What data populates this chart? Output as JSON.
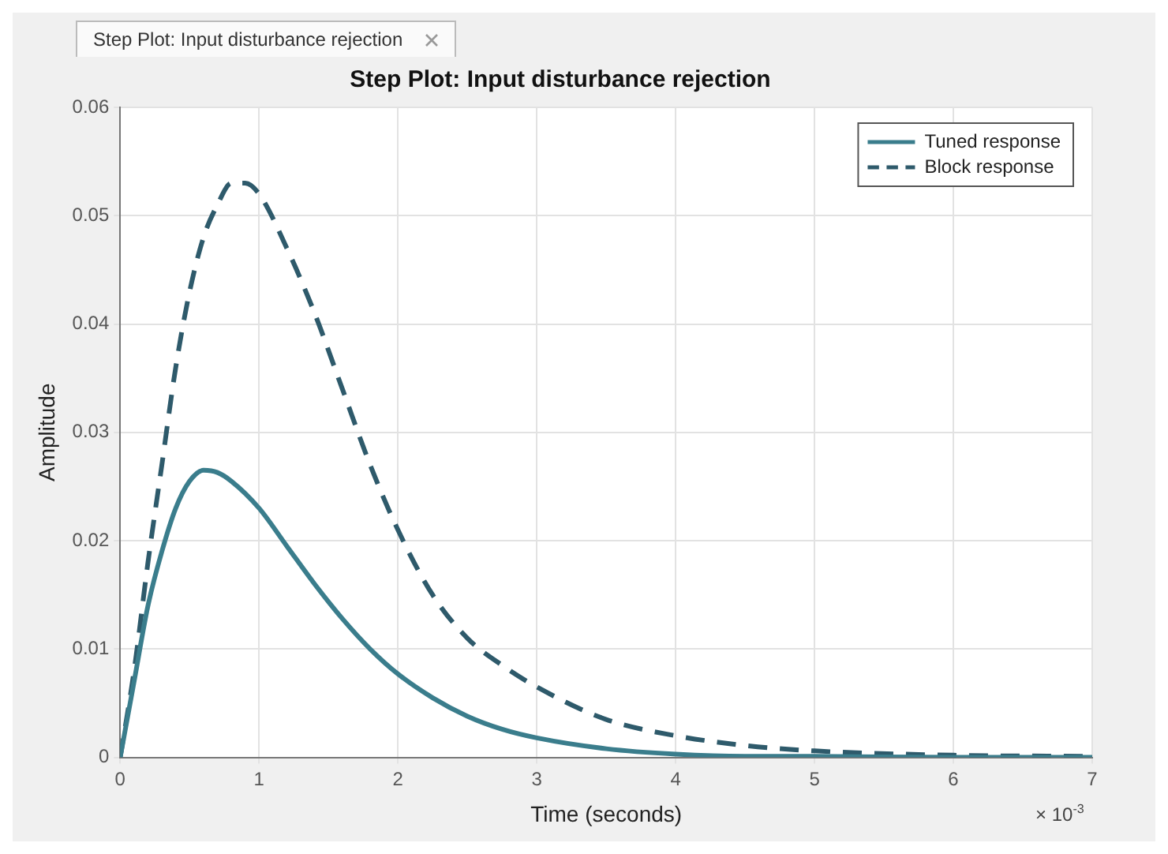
{
  "chart_data": {
    "type": "line",
    "title": "Step Plot: Input disturbance rejection",
    "xlabel": "Time (seconds)",
    "ylabel": "Amplitude",
    "annotations": [
      "Step Plot: Input disturbance rejection",
      "× 10$^{-3}$"
    ],
    "xlim": [
      0,
      7
    ],
    "xticks": [
      0,
      1,
      2,
      3,
      4,
      5,
      6,
      7
    ],
    "ylim": [
      0,
      0.06
    ],
    "yticks": [
      0,
      0.01,
      0.02,
      0.03,
      0.04,
      0.05,
      0.06
    ],
    "grid": true,
    "legend": "top right",
    "marker": "none",
    "series": [
      {
        "name": "Tuned response",
        "color": "#3a7d8c",
        "line_style": "solid",
        "x": [
          0,
          0.1,
          0.2,
          0.3,
          0.4,
          0.5,
          0.6,
          0.7,
          0.8,
          1.0,
          1.2,
          1.4,
          1.6,
          1.8,
          2.0,
          2.25,
          2.5,
          2.75,
          3.0,
          3.5,
          4.0,
          4.5,
          5,
          6,
          7
        ],
        "values": [
          0,
          0.007,
          0.014,
          0.019,
          0.023,
          0.0255,
          0.0265,
          0.0263,
          0.0255,
          0.023,
          0.0195,
          0.016,
          0.0128,
          0.01,
          0.0077,
          0.0055,
          0.0038,
          0.0026,
          0.0018,
          0.0008,
          0.0003,
          0.0001,
          0.0001,
          0,
          0
        ]
      },
      {
        "name": "Block response",
        "color": "#2e5a6b",
        "line_style": "dashed",
        "x": [
          0,
          0.1,
          0.2,
          0.3,
          0.4,
          0.5,
          0.6,
          0.7,
          0.8,
          0.9,
          1.0,
          1.2,
          1.4,
          1.6,
          1.8,
          2.0,
          2.25,
          2.5,
          2.75,
          3.0,
          3.5,
          4.0,
          4.5,
          5,
          6,
          7
        ],
        "values": [
          0,
          0.008,
          0.018,
          0.027,
          0.036,
          0.043,
          0.048,
          0.051,
          0.053,
          0.053,
          0.052,
          0.047,
          0.041,
          0.034,
          0.027,
          0.021,
          0.015,
          0.011,
          0.0085,
          0.0065,
          0.0035,
          0.002,
          0.0011,
          0.0006,
          0.0002,
          0.0001
        ]
      }
    ]
  }
}
